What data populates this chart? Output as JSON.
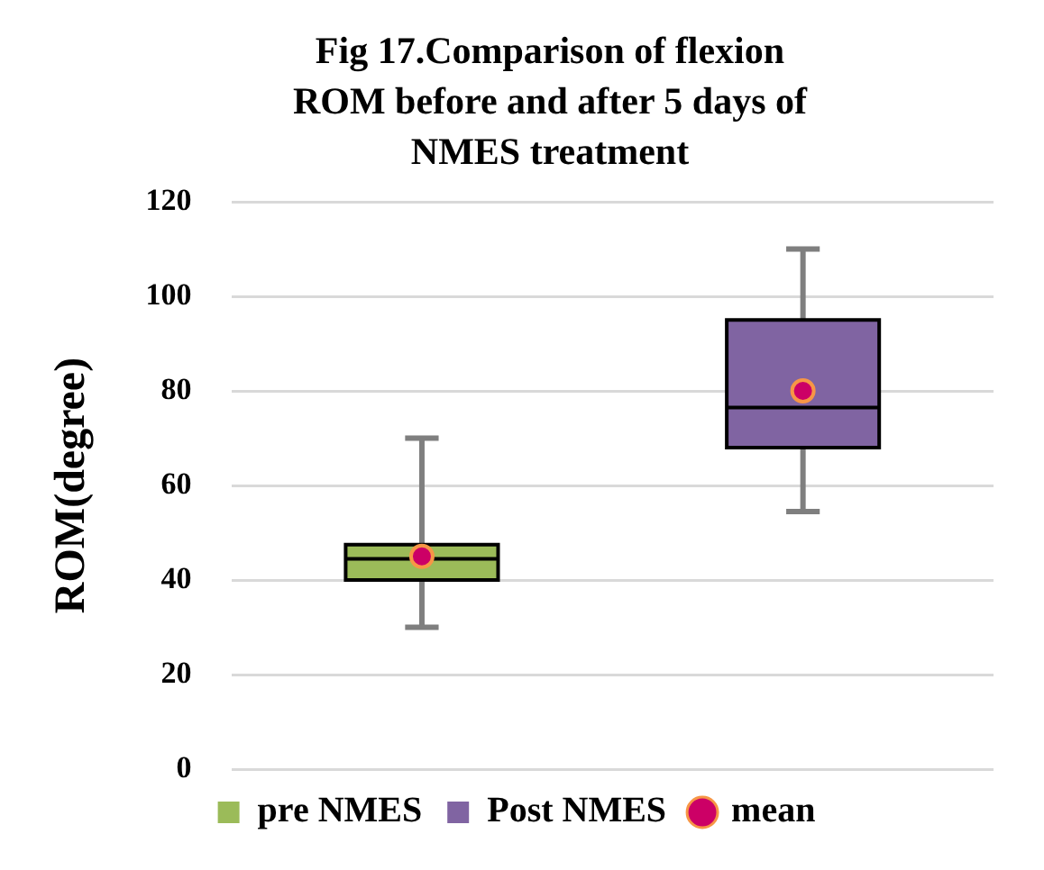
{
  "chart_data": {
    "type": "box",
    "title": "Fig 17.Comparison of flexion ROM before and after 5 days of NMES treatment",
    "ylabel": "ROM(degree)",
    "categories": [
      null,
      null
    ],
    "ylim": [
      0,
      120
    ],
    "yticks": [
      0,
      20,
      40,
      60,
      80,
      100,
      120
    ],
    "grid": "y",
    "tick_labels": "y",
    "legend": "bottom",
    "series": [
      {
        "name": "pre NMES",
        "type": "box",
        "color": "#9bbb59",
        "boxes": [
          {
            "low": 30,
            "q1": 40,
            "median": 44.5,
            "q3": 47.5,
            "high": 70
          },
          null
        ]
      },
      {
        "name": "Post NMES",
        "type": "box",
        "color": "#8064a2",
        "boxes": [
          null,
          {
            "low": 54.5,
            "q1": 68,
            "median": 76.5,
            "q3": 95,
            "high": 110
          }
        ]
      },
      {
        "name": "mean",
        "type": "scatter",
        "color": "#cc0066",
        "marker": "circle",
        "values": [
          45,
          80
        ]
      }
    ]
  }
}
